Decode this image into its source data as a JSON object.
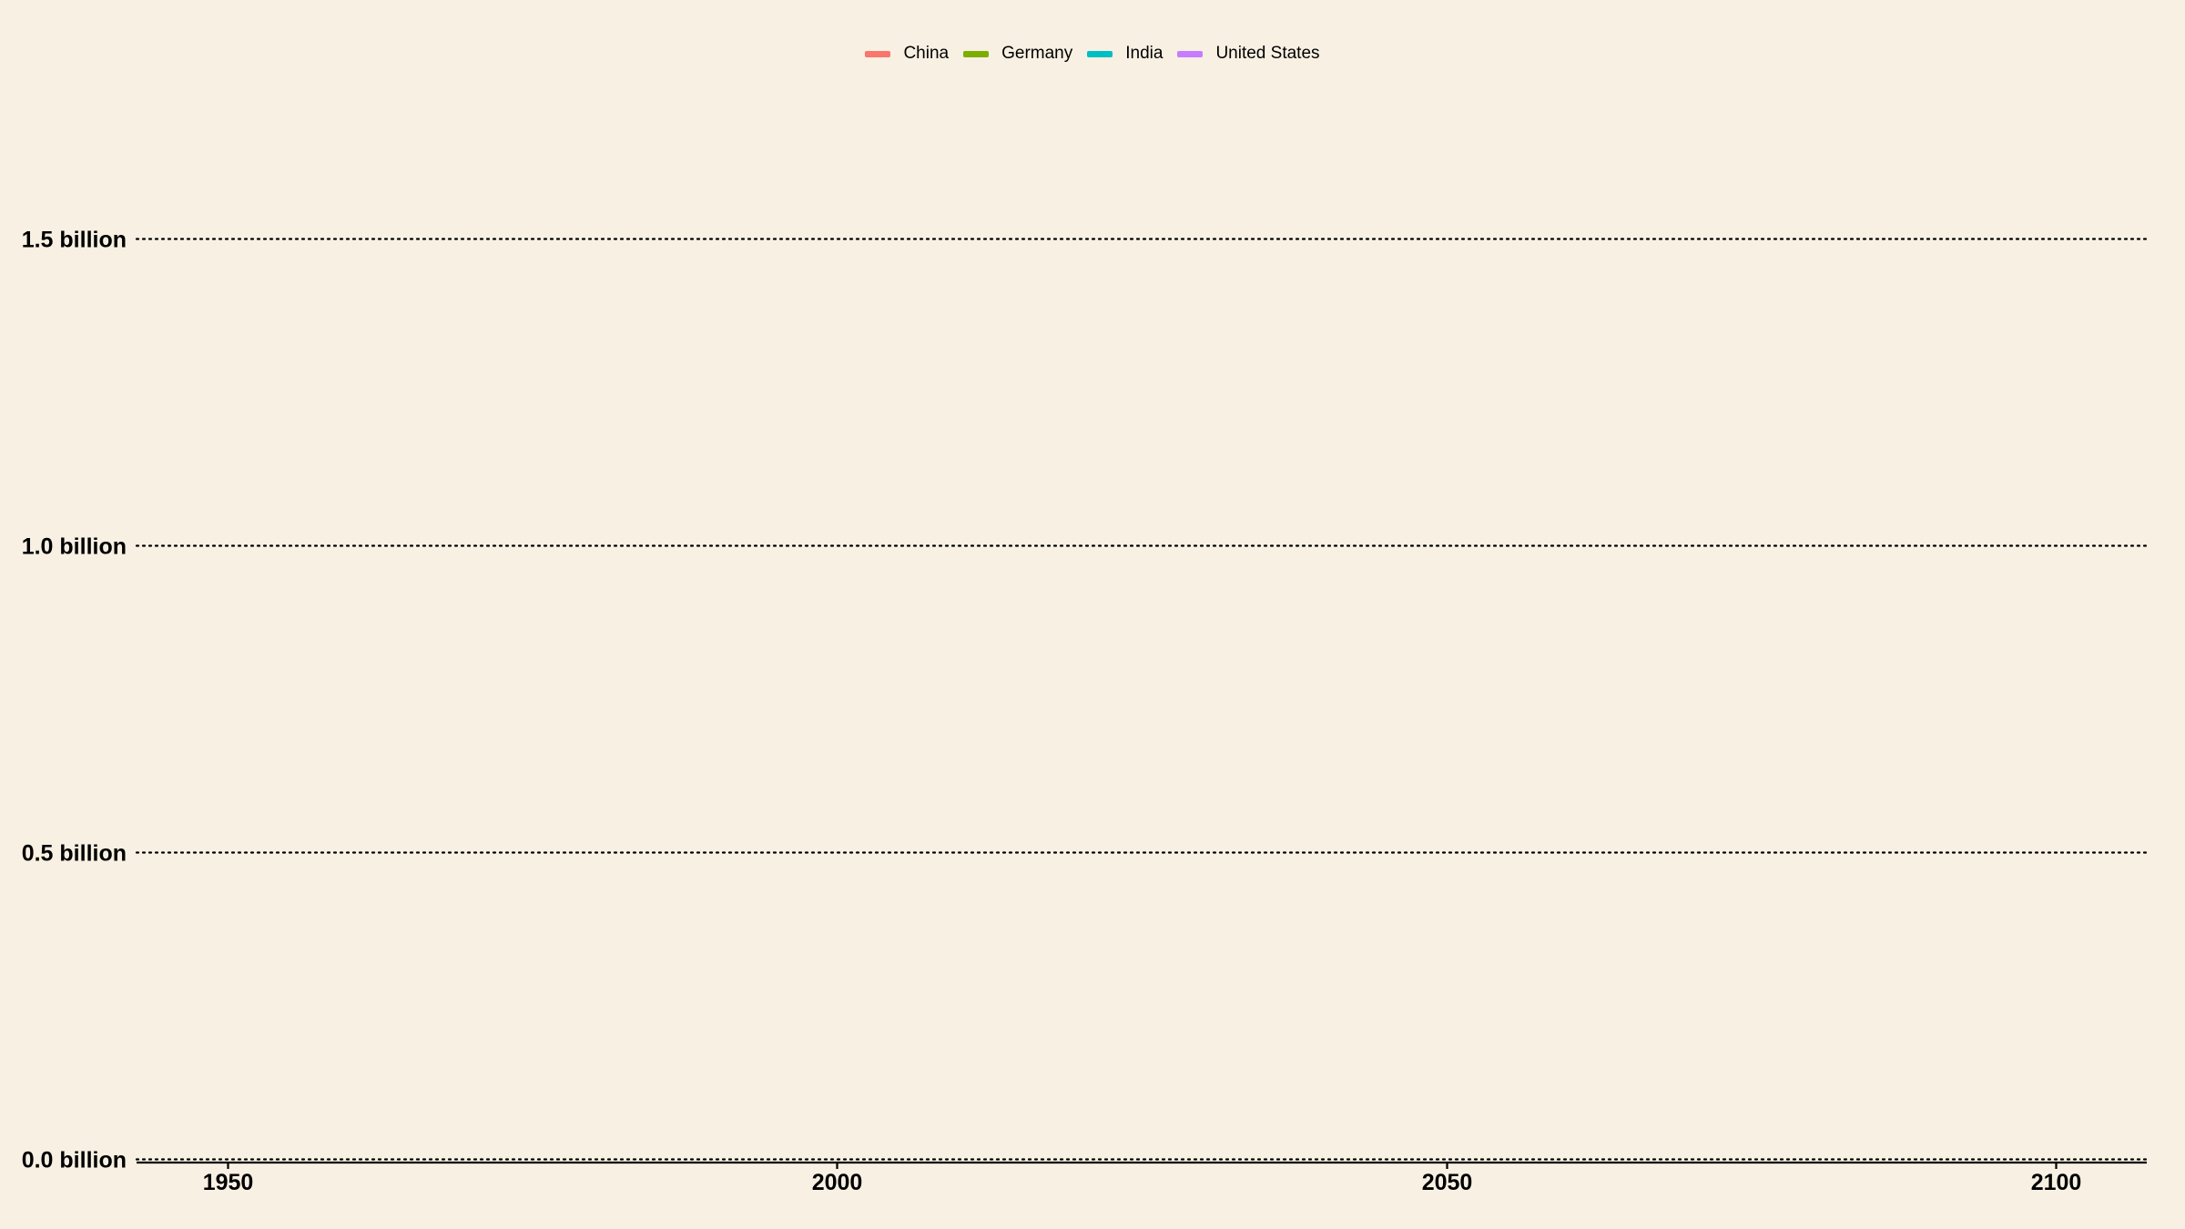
{
  "chart_data": {
    "type": "line",
    "title": "",
    "xlabel": "",
    "ylabel": "",
    "xlim": [
      1942.5,
      2107.5
    ],
    "ylim": [
      0,
      1.8
    ],
    "x_ticks": [
      1950,
      2000,
      2050,
      2100
    ],
    "x_tick_labels": [
      "1950",
      "2000",
      "2050",
      "2100"
    ],
    "y_ticks": [
      0,
      0.5,
      1.0,
      1.5
    ],
    "y_tick_labels": [
      "0.0 billion",
      "0.5 billion",
      "1.0 billion",
      "1.5 billion"
    ],
    "grid": "horizontal dotted",
    "legend_position": "top-center",
    "series": [
      {
        "name": "China",
        "color": "#f8766d",
        "values": []
      },
      {
        "name": "Germany",
        "color": "#7cae00",
        "values": []
      },
      {
        "name": "India",
        "color": "#00bfc4",
        "values": []
      },
      {
        "name": "United States",
        "color": "#c77cff",
        "values": []
      }
    ]
  }
}
